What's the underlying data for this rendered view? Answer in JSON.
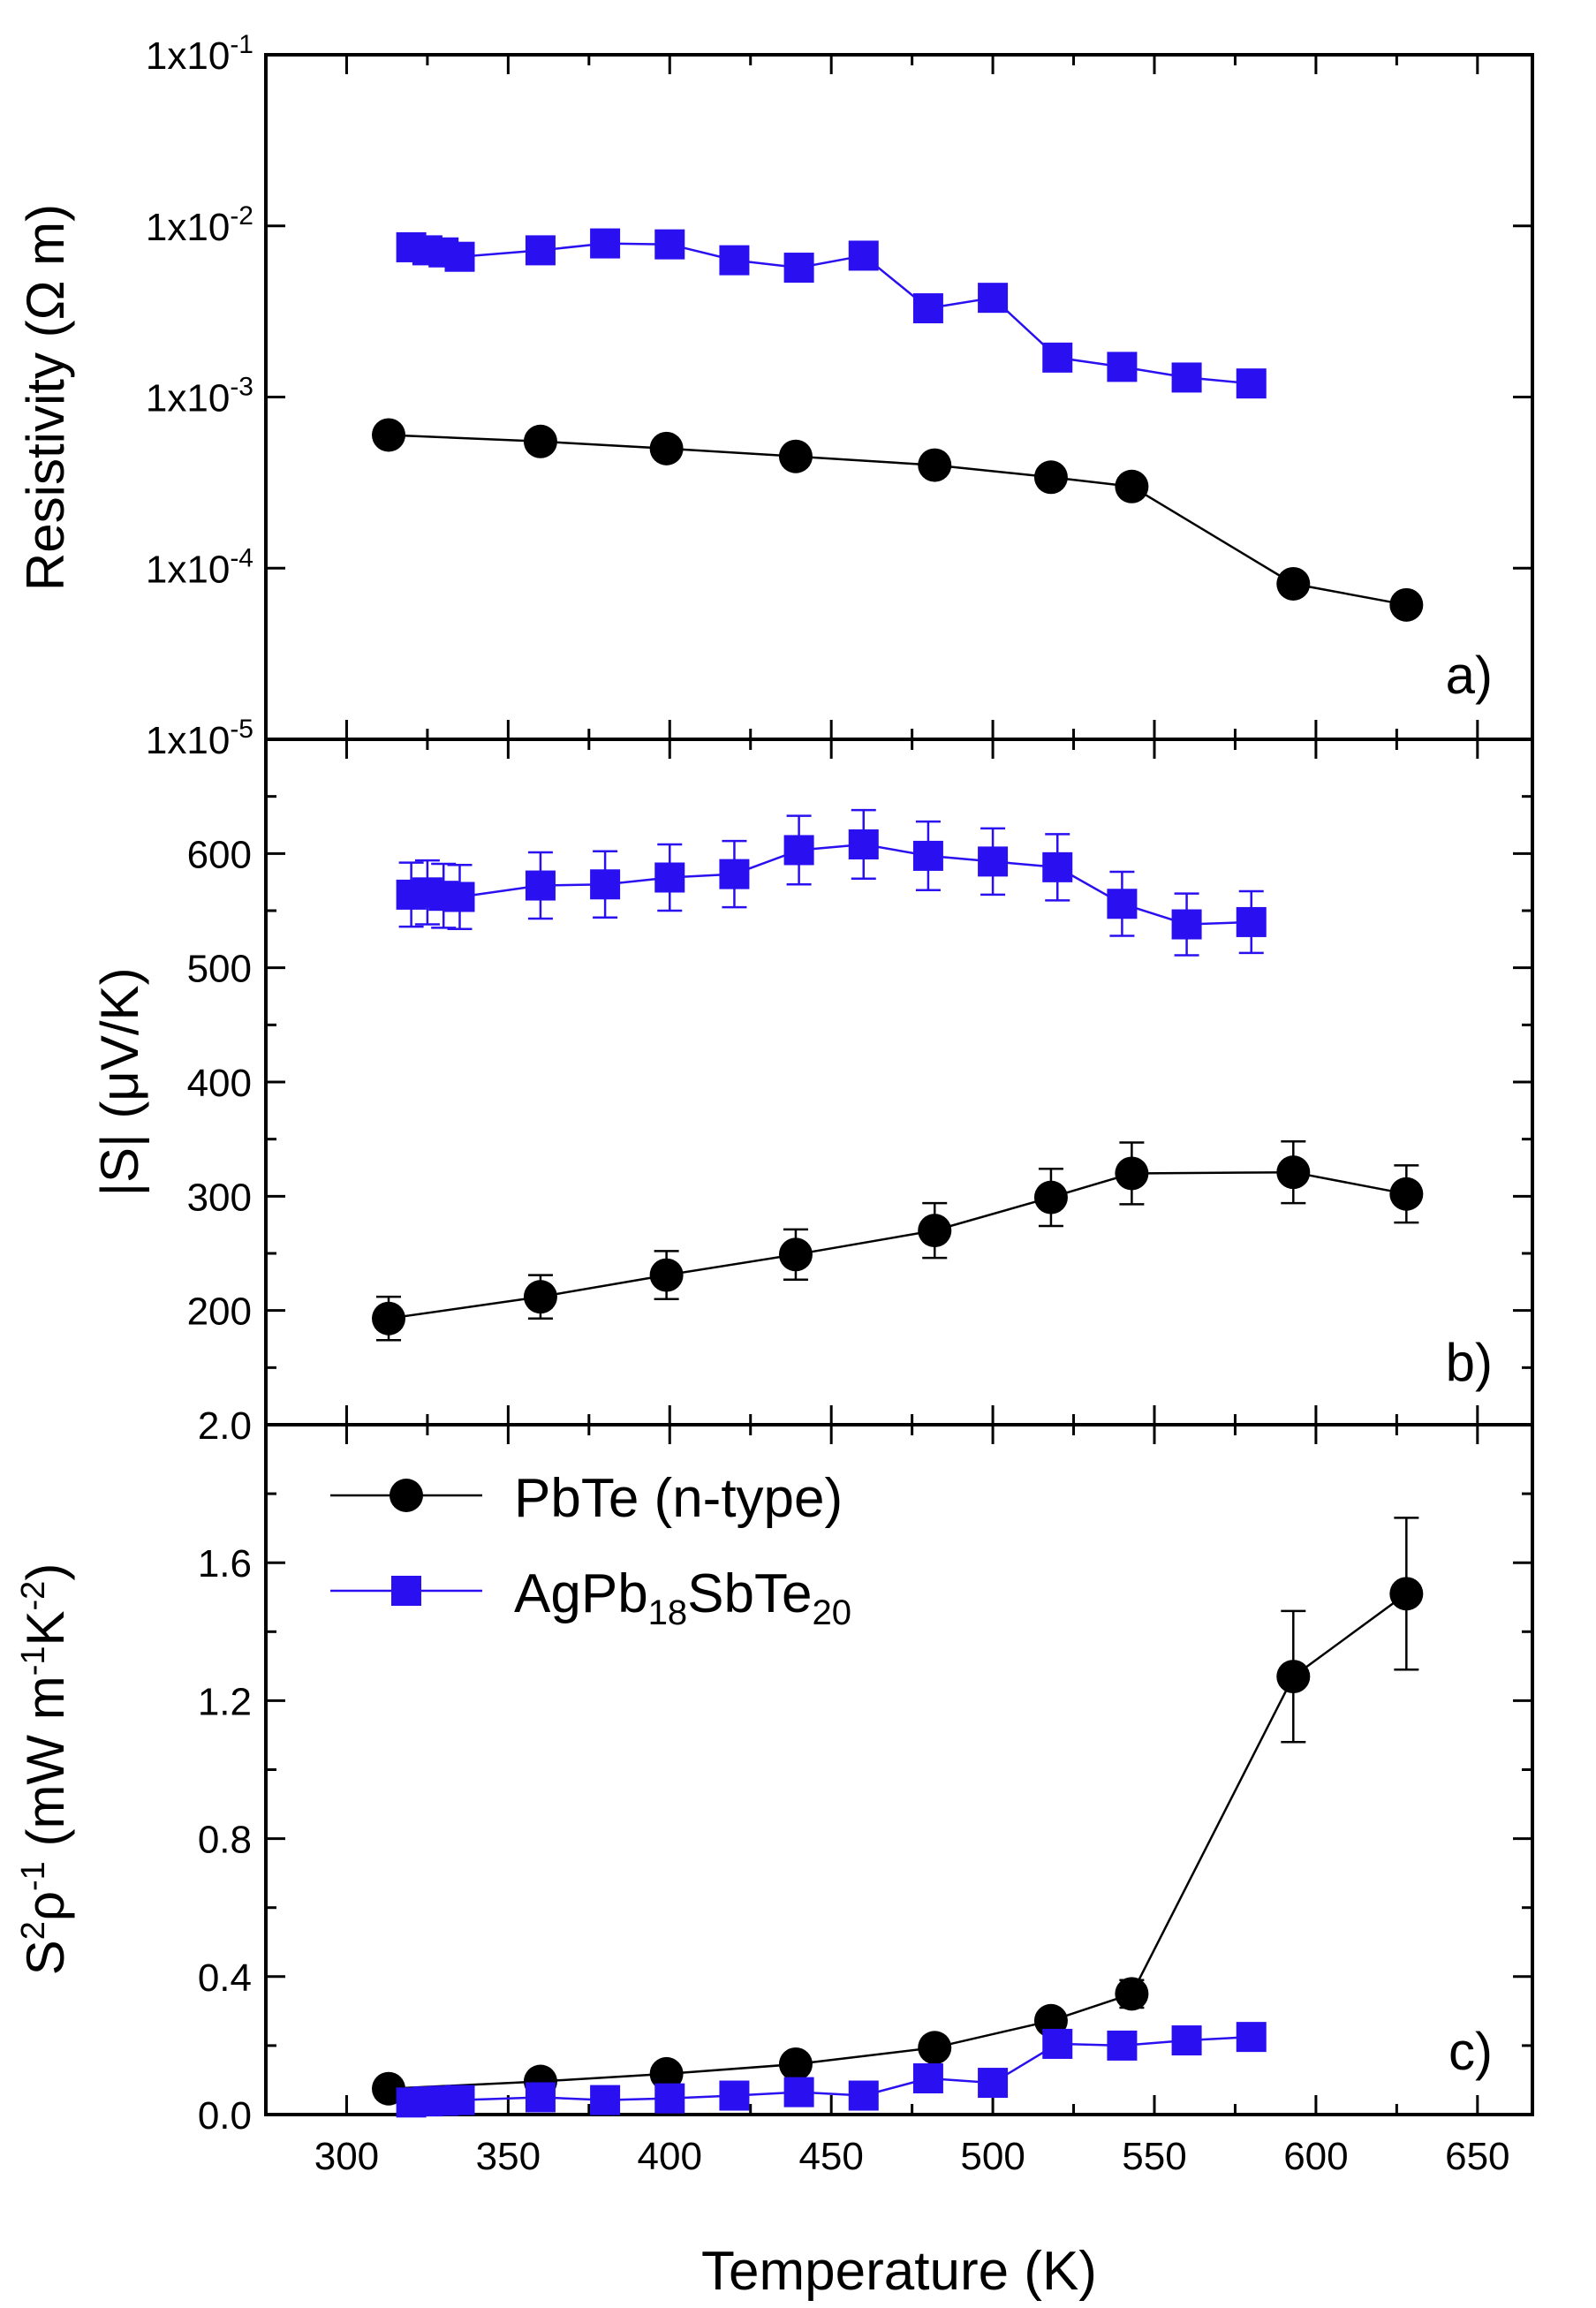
{
  "colors": {
    "pbte": "#000000",
    "ag": "#2a10f0",
    "axis": "#000000"
  },
  "legend": {
    "items": [
      {
        "series": "pbte",
        "marker": "circle",
        "label": "PbTe (n-type)"
      },
      {
        "series": "ag",
        "marker": "square",
        "label_parts": [
          "AgPb",
          "18",
          "SbTe",
          "20"
        ]
      }
    ]
  },
  "chart_data": {
    "type": "line",
    "xlabel": "Temperature (K)",
    "xlim": [
      275,
      667
    ],
    "xticks": [
      300,
      350,
      400,
      450,
      500,
      550,
      600,
      650
    ],
    "series_names": [
      "PbTe (n-type)",
      "AgPb18SbTe20"
    ],
    "panels": [
      {
        "id": "a",
        "panel_label": "a)",
        "ylabel": "Resistivity (Ω m)",
        "yscale": "log",
        "ylim": [
          1e-05,
          0.1
        ],
        "yticks": [
          1e-05,
          0.0001,
          0.001,
          0.01,
          0.1
        ],
        "ytick_labels": [
          {
            "value": 1e-05,
            "base": "1x10",
            "exp": "-5"
          },
          {
            "value": 0.0001,
            "base": "1x10",
            "exp": "-4"
          },
          {
            "value": 0.001,
            "base": "1x10",
            "exp": "-3"
          },
          {
            "value": 0.01,
            "base": "1x10",
            "exp": "-2"
          },
          {
            "value": 0.1,
            "base": "1x10",
            "exp": "-1"
          }
        ],
        "series": [
          {
            "key": "pbte",
            "name": "PbTe (n-type)",
            "marker": "circle",
            "x": [
              313,
              360,
              399,
              439,
              482,
              518,
              543,
              593,
              628
            ],
            "y": [
              0.0006,
              0.00055,
              0.0005,
              0.00045,
              0.0004,
              0.00034,
              0.0003,
              8.1e-05,
              6.1e-05
            ]
          },
          {
            "key": "ag",
            "name": "AgPb18SbTe20",
            "marker": "square",
            "x": [
              320,
              325,
              330,
              335,
              360,
              380,
              400,
              420,
              440,
              460,
              480,
              500,
              520,
              540,
              560,
              580
            ],
            "y": [
              0.0075,
              0.0072,
              0.007,
              0.0066,
              0.0072,
              0.0079,
              0.0078,
              0.0063,
              0.0057,
              0.0067,
              0.0033,
              0.0038,
              0.0017,
              0.0015,
              0.0013,
              0.0012
            ]
          }
        ]
      },
      {
        "id": "b",
        "panel_label": "b)",
        "ylabel": "|S| (μV/K)",
        "yscale": "linear",
        "ylim": [
          100,
          700
        ],
        "yticks": [
          200,
          300,
          400,
          500,
          600
        ],
        "series": [
          {
            "key": "pbte",
            "name": "PbTe (n-type)",
            "marker": "circle",
            "x": [
              313,
              360,
              399,
              439,
              482,
              518,
              543,
              593,
              628
            ],
            "y": [
              193,
              212,
              231,
              249,
              270,
              299,
              320,
              321,
              302
            ],
            "err": [
              19,
              19,
              21,
              22,
              24,
              25,
              27,
              27,
              25
            ]
          },
          {
            "key": "ag",
            "name": "AgPb18SbTe20",
            "marker": "square",
            "x": [
              320,
              325,
              330,
              335,
              360,
              380,
              400,
              420,
              440,
              460,
              480,
              500,
              520,
              540,
              560,
              580
            ],
            "y": [
              564,
              566,
              563,
              562,
              572,
              573,
              579,
              582,
              603,
              608,
              598,
              593,
              588,
              556,
              538,
              540
            ],
            "err": [
              28,
              28,
              28,
              28,
              29,
              29,
              29,
              29,
              30,
              30,
              30,
              29,
              29,
              28,
              27,
              27
            ]
          }
        ]
      },
      {
        "id": "c",
        "panel_label": "c)",
        "ylabel_parts": [
          "S",
          "2",
          "ρ",
          "-1",
          " (mW m",
          "-1",
          "K",
          "-2",
          ")"
        ],
        "yscale": "linear",
        "ylim": [
          0.0,
          2.0
        ],
        "yticks": [
          0.0,
          0.4,
          0.8,
          1.2,
          1.6,
          2.0
        ],
        "ytick_labels": [
          "0.0",
          "0.4",
          "0.8",
          "1.2",
          "1.6",
          "2.0"
        ],
        "series": [
          {
            "key": "pbte",
            "name": "PbTe (n-type)",
            "marker": "circle",
            "x": [
              313,
              360,
              399,
              439,
              482,
              518,
              543,
              593,
              628
            ],
            "y": [
              0.075,
              0.096,
              0.118,
              0.146,
              0.194,
              0.272,
              0.35,
              1.27,
              1.51
            ],
            "err": [
              0,
              0,
              0,
              0,
              0,
              0,
              0.04,
              0.19,
              0.22
            ]
          },
          {
            "key": "ag",
            "name": "AgPb18SbTe20",
            "marker": "square",
            "x": [
              320,
              325,
              330,
              335,
              360,
              380,
              400,
              420,
              440,
              460,
              480,
              500,
              520,
              540,
              560,
              580
            ],
            "y": [
              0.035,
              0.038,
              0.04,
              0.042,
              0.05,
              0.042,
              0.047,
              0.055,
              0.065,
              0.055,
              0.105,
              0.092,
              0.205,
              0.2,
              0.215,
              0.225
            ]
          }
        ]
      }
    ]
  }
}
